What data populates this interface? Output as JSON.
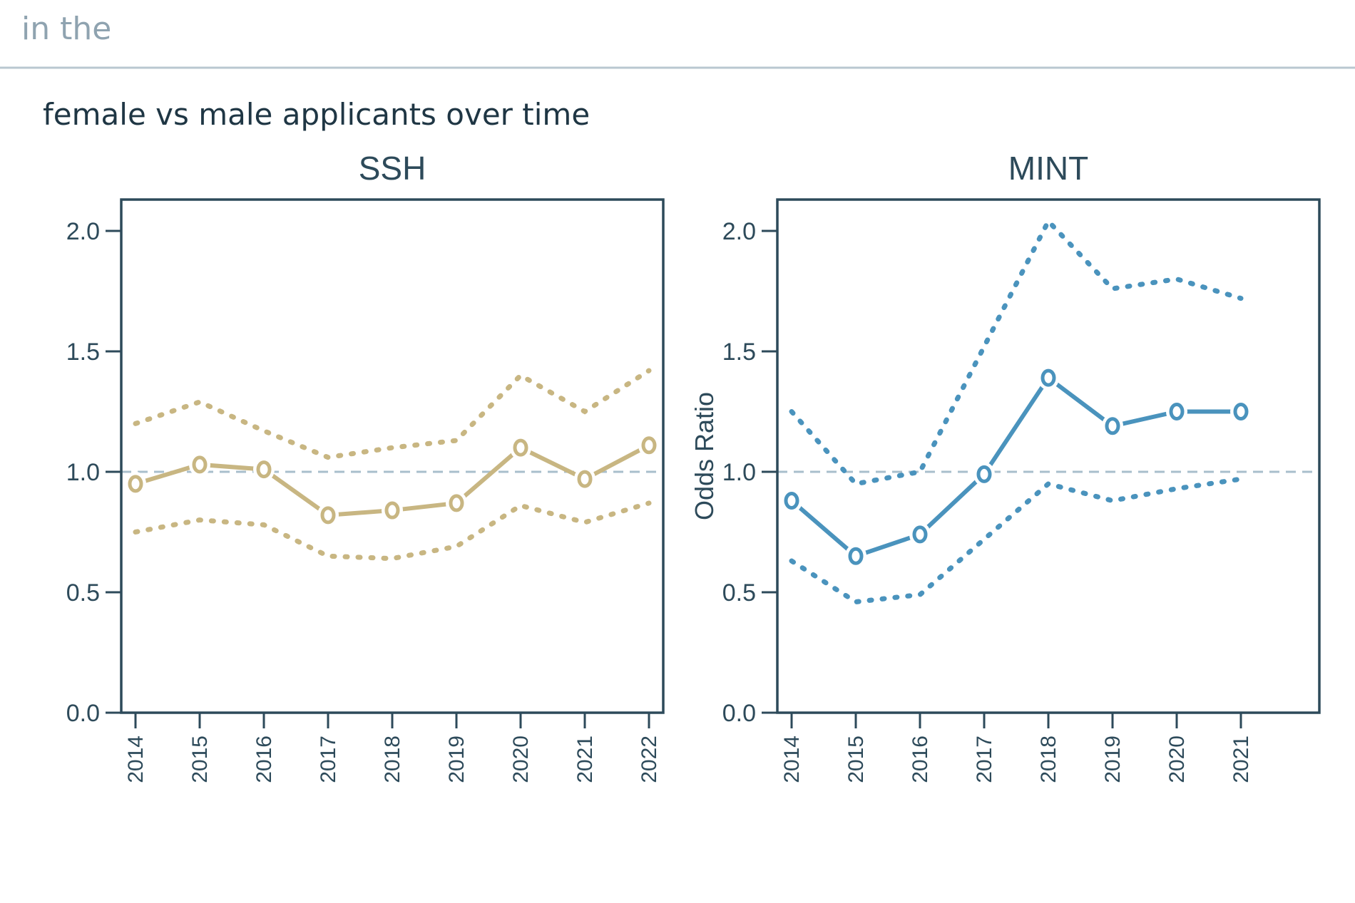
{
  "header": {
    "partial_text": "in the",
    "figure_title": "female vs male applicants over time"
  },
  "y_axis_label": "Odds Ratio",
  "colors": {
    "SSH": "#c8b682",
    "MINT": "#4a93bd",
    "axis": "#2d4a5a",
    "reference": "#a9bfcc"
  },
  "chart_data": [
    {
      "type": "line",
      "title": "SSH",
      "ylabel": "",
      "ylim": [
        0,
        2.13
      ],
      "yticks": [
        "0.0",
        "0.5",
        "1.0",
        "1.5",
        "2.0"
      ],
      "x": [
        "2014",
        "2015",
        "2016",
        "2017",
        "2018",
        "2019",
        "2020",
        "2021",
        "2022"
      ],
      "reference_line": 1.0,
      "odds_ratio": [
        0.95,
        1.03,
        1.01,
        0.82,
        0.84,
        0.87,
        1.1,
        0.97,
        1.11
      ],
      "upper": [
        1.2,
        1.29,
        1.17,
        1.06,
        1.1,
        1.13,
        1.4,
        1.25,
        1.42
      ],
      "lower": [
        0.75,
        0.8,
        0.78,
        0.65,
        0.64,
        0.69,
        0.86,
        0.79,
        0.87
      ]
    },
    {
      "type": "line",
      "title": "MINT",
      "ylabel": "Odds Ratio",
      "ylim": [
        0,
        2.13
      ],
      "yticks": [
        "0.0",
        "0.5",
        "1.0",
        "1.5",
        "2.0"
      ],
      "x": [
        "2014",
        "2015",
        "2016",
        "2017",
        "2018",
        "2019",
        "2020",
        "2021"
      ],
      "reference_line": 1.0,
      "odds_ratio": [
        0.88,
        0.65,
        0.74,
        0.99,
        1.39,
        1.19,
        1.25,
        1.25
      ],
      "upper": [
        1.25,
        0.95,
        1.0,
        1.52,
        2.04,
        1.76,
        1.8,
        1.72
      ],
      "lower": [
        0.63,
        0.46,
        0.49,
        0.72,
        0.95,
        0.88,
        0.93,
        0.97
      ]
    }
  ]
}
